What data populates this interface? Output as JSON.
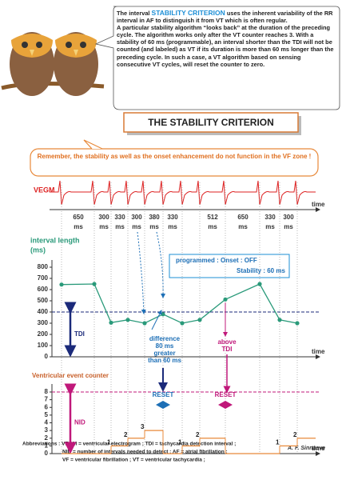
{
  "bubble": {
    "before": "The interval ",
    "highlight": "STABILITY CRITERION",
    "after": " uses the inherent variability of the RR interval in AF to distinguish it from VT which is often regular.",
    "paragraph2": "A particular stability algorithm “looks back” at the duration of the preceding cycle. The algorithm works only after the VT counter reaches 3. With a  stability of 60 ms (programmable), an interval shorter than the TDI will not be counted (and labeled) as VT if its duration is more than 60 ms longer  than the preceding cycle. In such a case, a VT algorithm based on sensing consecutive VT cycles, will reset the counter to zero."
  },
  "title": "THE STABILITY CRITERION",
  "note": "Remember, the stability as well as the onset enhancement do not function in the VF zone !",
  "vegm_label": "VEGM",
  "time_label": "time",
  "intervals": [
    650,
    300,
    330,
    300,
    380,
    330,
    512,
    650,
    330,
    300
  ],
  "interval_unit": "ms",
  "interval_chart": {
    "label_line1": "interval length",
    "label_line2": "(ms)",
    "ylim": [
      0,
      800
    ],
    "yticks": [
      0,
      100,
      200,
      300,
      400,
      500,
      600,
      700,
      800
    ],
    "values": [
      645,
      650,
      305,
      330,
      300,
      380,
      300,
      330,
      512,
      650,
      330,
      300
    ],
    "tdi_value": 400,
    "tdi_label": "TDI"
  },
  "programmed": {
    "line1": "programmed : Onset : OFF",
    "line2": "Stability : 60 ms"
  },
  "difference": [
    "difference",
    "80 ms",
    "greater",
    "than 60 ms"
  ],
  "above_tdi": [
    "above",
    "TDI"
  ],
  "counter": {
    "label": "Ventricular event counter",
    "ylim": [
      0,
      8
    ],
    "yticks": [
      0,
      1,
      2,
      3,
      4,
      5,
      6,
      7,
      8
    ],
    "values": [
      0,
      0,
      1,
      2,
      3,
      0,
      1,
      2,
      0,
      0,
      1,
      2
    ],
    "nid_value": 8,
    "nid_label": "NID",
    "reset_label": "RESET"
  },
  "abbreviations": [
    "Abbreviations : VEGM = ventricular electrogram ; TDI = tachycardia detection interval ;",
    "NID = number of intervals needed to detect ; AF = atrial fibrillation ;",
    "VF = ventricular fibrillation ; VT = ventricular tachycardia ;"
  ],
  "signature": "A. F. Sinnaeve"
}
